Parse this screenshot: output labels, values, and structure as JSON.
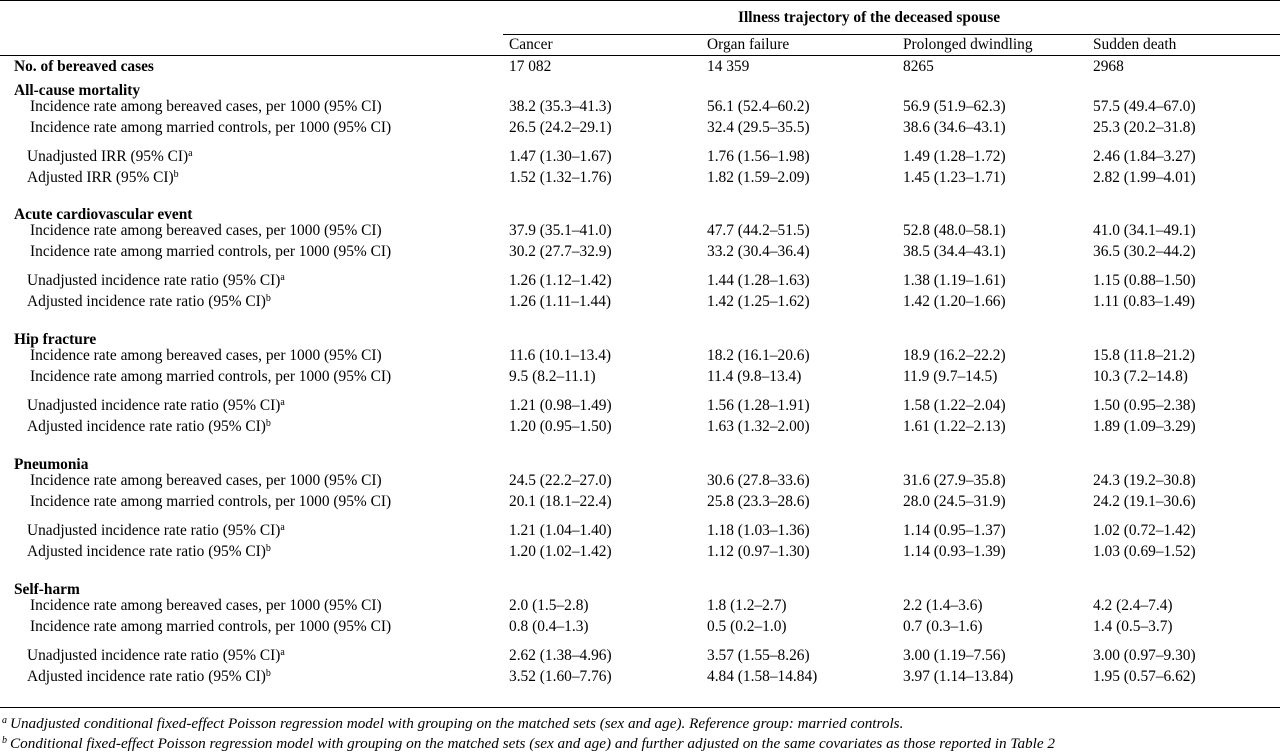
{
  "header": {
    "spanner": "Illness trajectory of the deceased spouse",
    "columns": [
      "Cancer",
      "Organ failure",
      "Prolonged dwindling",
      "Sudden death"
    ]
  },
  "cases_row": {
    "label": "No. of bereaved cases",
    "values": [
      "17 082",
      "14 359",
      "8265",
      "2968"
    ]
  },
  "sections": [
    {
      "title": "All-cause mortality",
      "rows": [
        {
          "label": "Incidence rate among bereaved cases, per 1000 (95% CI)",
          "sup": "",
          "values": [
            "38.2 (35.3–41.3)",
            "56.1 (52.4–60.2)",
            "56.9 (51.9–62.3)",
            "57.5 (49.4–67.0)"
          ]
        },
        {
          "label": "Incidence rate among married controls, per 1000 (95% CI)",
          "sup": "",
          "values": [
            "26.5 (24.2–29.1)",
            "32.4 (29.5–35.5)",
            "38.6 (34.6–43.1)",
            "25.3 (20.2–31.8)"
          ]
        },
        {
          "label": "Unadjusted IRR (95% CI)",
          "sup": "a",
          "values": [
            "1.47 (1.30–1.67)",
            "1.76 (1.56–1.98)",
            "1.49 (1.28–1.72)",
            "2.46 (1.84–3.27)"
          ]
        },
        {
          "label": "Adjusted IRR (95% CI)",
          "sup": "b",
          "values": [
            "1.52 (1.32–1.76)",
            "1.82 (1.59–2.09)",
            "1.45 (1.23–1.71)",
            "2.82 (1.99–4.01)"
          ]
        }
      ]
    },
    {
      "title": "Acute cardiovascular event",
      "rows": [
        {
          "label": "Incidence rate among bereaved cases, per 1000 (95% CI)",
          "sup": "",
          "values": [
            "37.9 (35.1–41.0)",
            "47.7 (44.2–51.5)",
            "52.8 (48.0–58.1)",
            "41.0 (34.1–49.1)"
          ]
        },
        {
          "label": "Incidence rate among married controls, per 1000 (95% CI)",
          "sup": "",
          "values": [
            "30.2 (27.7–32.9)",
            "33.2 (30.4–36.4)",
            "38.5 (34.4–43.1)",
            "36.5 (30.2–44.2)"
          ]
        },
        {
          "label": "Unadjusted incidence rate ratio (95% CI)",
          "sup": "a",
          "values": [
            "1.26 (1.12–1.42)",
            "1.44 (1.28–1.63)",
            "1.38 (1.19–1.61)",
            "1.15 (0.88–1.50)"
          ]
        },
        {
          "label": "Adjusted incidence rate ratio (95% CI)",
          "sup": "b",
          "values": [
            "1.26 (1.11–1.44)",
            "1.42 (1.25–1.62)",
            "1.42 (1.20–1.66)",
            "1.11 (0.83–1.49)"
          ]
        }
      ]
    },
    {
      "title": "Hip fracture",
      "rows": [
        {
          "label": "Incidence rate among bereaved cases, per 1000 (95% CI)",
          "sup": "",
          "values": [
            "11.6 (10.1–13.4)",
            "18.2 (16.1–20.6)",
            "18.9 (16.2–22.2)",
            "15.8 (11.8–21.2)"
          ]
        },
        {
          "label": "Incidence rate among married controls, per 1000 (95% CI)",
          "sup": "",
          "values": [
            "9.5 (8.2–11.1)",
            "11.4 (9.8–13.4)",
            "11.9 (9.7–14.5)",
            "10.3 (7.2–14.8)"
          ]
        },
        {
          "label": "Unadjusted incidence rate ratio (95% CI)",
          "sup": "a",
          "values": [
            "1.21 (0.98–1.49)",
            "1.56 (1.28–1.91)",
            "1.58 (1.22–2.04)",
            "1.50 (0.95–2.38)"
          ]
        },
        {
          "label": "Adjusted incidence rate ratio (95% CI)",
          "sup": "b",
          "values": [
            "1.20 (0.95–1.50)",
            "1.63 (1.32–2.00)",
            "1.61 (1.22–2.13)",
            "1.89 (1.09–3.29)"
          ]
        }
      ]
    },
    {
      "title": "Pneumonia",
      "rows": [
        {
          "label": "Incidence rate among bereaved cases, per 1000 (95% CI)",
          "sup": "",
          "values": [
            "24.5 (22.2–27.0)",
            "30.6 (27.8–33.6)",
            "31.6 (27.9–35.8)",
            "24.3 (19.2–30.8)"
          ]
        },
        {
          "label": "Incidence rate among married controls, per 1000 (95% CI)",
          "sup": "",
          "values": [
            "20.1 (18.1–22.4)",
            "25.8 (23.3–28.6)",
            "28.0 (24.5–31.9)",
            "24.2 (19.1–30.6)"
          ]
        },
        {
          "label": "Unadjusted incidence rate ratio (95% CI)",
          "sup": "a",
          "values": [
            "1.21 (1.04–1.40)",
            "1.18 (1.03–1.36)",
            "1.14 (0.95–1.37)",
            "1.02 (0.72–1.42)"
          ]
        },
        {
          "label": "Adjusted incidence rate ratio (95% CI)",
          "sup": "b",
          "values": [
            "1.20 (1.02–1.42)",
            "1.12 (0.97–1.30)",
            "1.14 (0.93–1.39)",
            "1.03 (0.69–1.52)"
          ]
        }
      ]
    },
    {
      "title": "Self-harm",
      "rows": [
        {
          "label": "Incidence rate among bereaved cases, per 1000 (95% CI)",
          "sup": "",
          "values": [
            "2.0 (1.5–2.8)",
            "1.8 (1.2–2.7)",
            "2.2 (1.4–3.6)",
            "4.2 (2.4–7.4)"
          ]
        },
        {
          "label": "Incidence rate among married controls, per 1000 (95% CI)",
          "sup": "",
          "values": [
            "0.8 (0.4–1.3)",
            "0.5 (0.2–1.0)",
            "0.7 (0.3–1.6)",
            "1.4 (0.5–3.7)"
          ]
        },
        {
          "label": "Unadjusted incidence rate ratio (95% CI)",
          "sup": "a",
          "values": [
            "2.62 (1.38–4.96)",
            "3.57 (1.55–8.26)",
            "3.00 (1.19–7.56)",
            "3.00 (0.97–9.30)"
          ]
        },
        {
          "label": "Adjusted incidence rate ratio (95% CI)",
          "sup": "b",
          "values": [
            "3.52 (1.60–7.76)",
            "4.84 (1.58–14.84)",
            "3.97 (1.14–13.84)",
            "1.95 (0.57–6.62)"
          ]
        }
      ]
    }
  ],
  "footnotes": [
    {
      "mark": "a",
      "text": "Unadjusted conditional fixed-effect Poisson regression model with grouping on the matched sets (sex and age). Reference group: married controls."
    },
    {
      "mark": "b",
      "text": "Conditional fixed-effect Poisson regression model with grouping on the matched sets (sex and age) and further adjusted on the same covariates as those reported in Table 2"
    }
  ]
}
